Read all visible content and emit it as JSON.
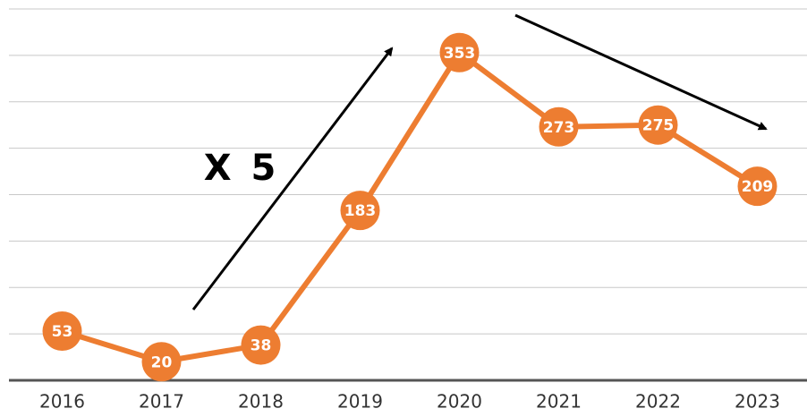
{
  "chart_data": {
    "type": "line",
    "categories": [
      "2016",
      "2017",
      "2018",
      "2019",
      "2020",
      "2021",
      "2022",
      "2023"
    ],
    "values": [
      53,
      20,
      38,
      183,
      353,
      273,
      275,
      209
    ],
    "color": "#ed7d31",
    "ylim": [
      0,
      400
    ],
    "yticks": [
      0,
      50,
      100,
      150,
      200,
      250,
      300,
      350,
      400
    ],
    "grid": true,
    "annotations": [
      "X 5"
    ]
  }
}
